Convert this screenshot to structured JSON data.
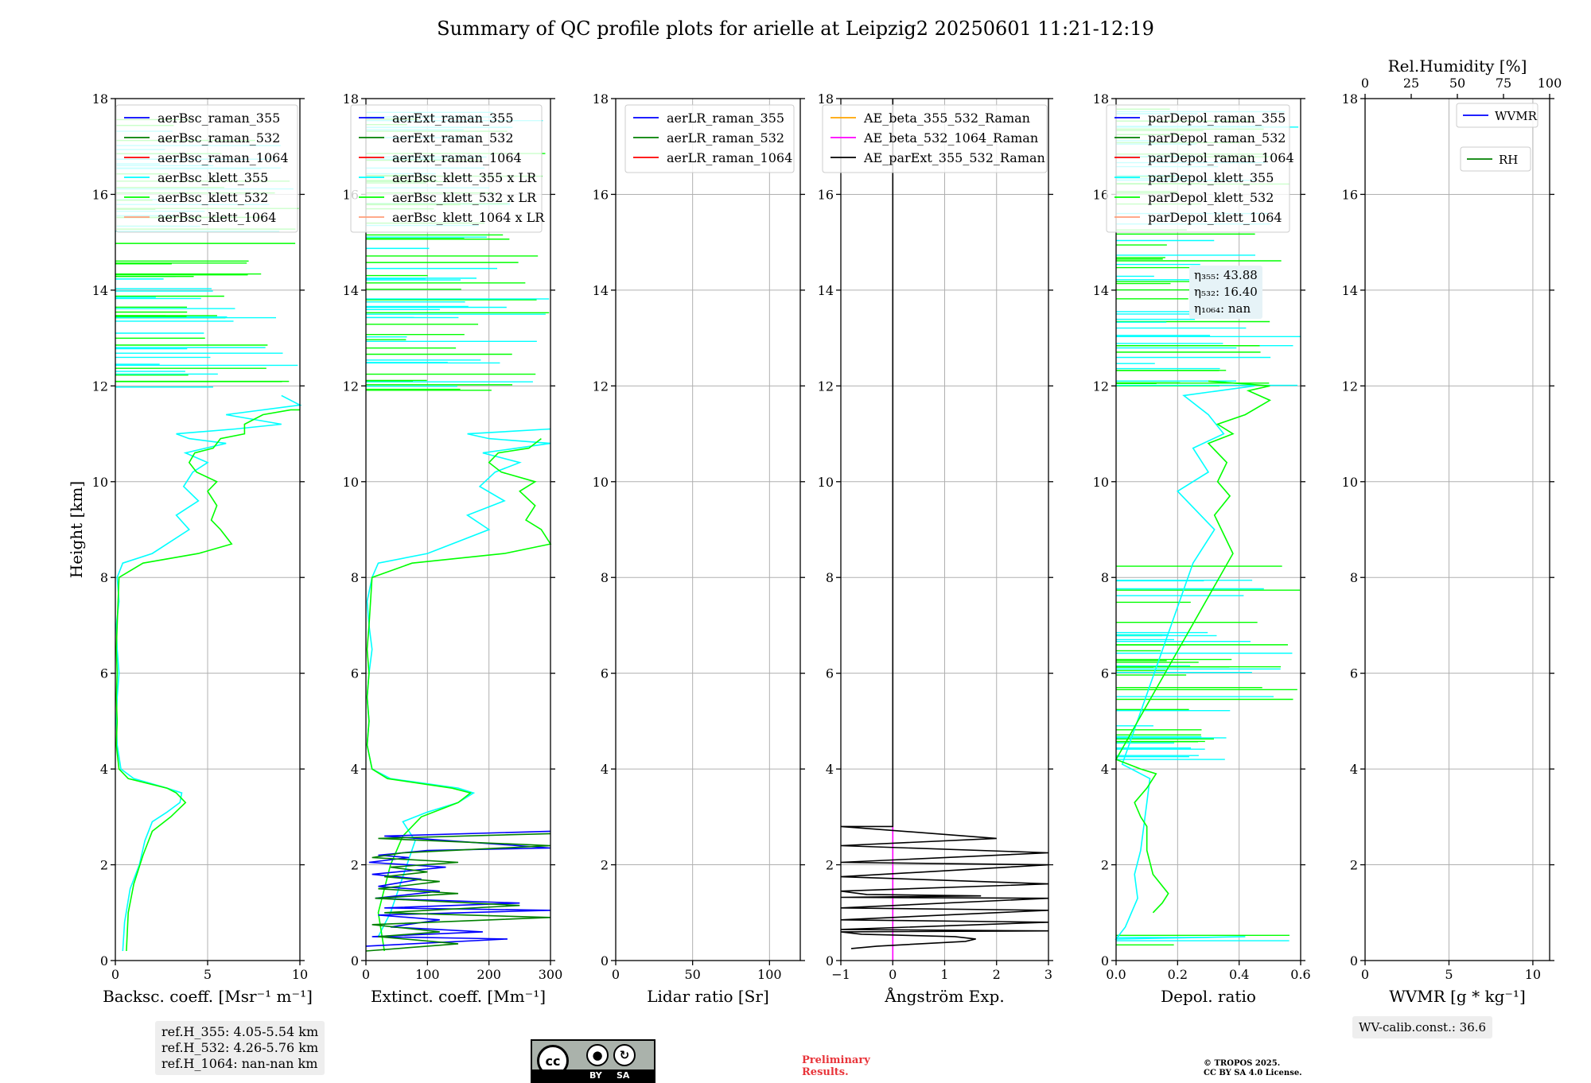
{
  "title": "Summary of QC profile plots for arielle at Leipzig2 20250601 11:21-12:19",
  "colors": {
    "raman_355": "#0000ff",
    "raman_532": "#008000",
    "raman_1064": "#ff0000",
    "klett_355": "#00ffff",
    "klett_532": "#00ff00",
    "klett_1064": "#ff9e7a",
    "ae_beta_355_532": "#ffa500",
    "ae_beta_532_1064": "#ff00ff",
    "ae_parext": "#000000",
    "wvmr": "#0000ff",
    "rh": "#008000"
  },
  "chart_data": [
    {
      "type": "line",
      "ylabel": "Height [km]",
      "xlabel": "Backsc. coeff. [Msr⁻¹ m⁻¹]",
      "xlim": [
        0,
        10
      ],
      "ylim": [
        0,
        18
      ],
      "xticks": [
        "0",
        "5",
        "10"
      ],
      "yticks": [
        "0",
        "2",
        "4",
        "6",
        "8",
        "10",
        "12",
        "14",
        "16",
        "18"
      ],
      "grid": true,
      "legend_position": "top-right",
      "legend": [
        "aerBsc_raman_355",
        "aerBsc_raman_532",
        "aerBsc_raman_1064",
        "aerBsc_klett_355",
        "aerBsc_klett_532",
        "aerBsc_klett_1064"
      ],
      "series": [
        {
          "name": "aerBsc_klett_355",
          "color": "#00ffff",
          "x": [
            0.4,
            0.5,
            0.8,
            1.3,
            1.6,
            2.0,
            2.8,
            3.5,
            3.6,
            2.8,
            1.0,
            0.3,
            0.1,
            0.05,
            0.1,
            0.2,
            0.1,
            0.05,
            0.2,
            0.1,
            0.4,
            2.0,
            4.0,
            3.3,
            4.5,
            3.7,
            4.2,
            5.0,
            3.8,
            6.0,
            4.0,
            3.3,
            6.5,
            9.0,
            6.0,
            10.0,
            9.0
          ],
          "y": [
            0.2,
            0.8,
            1.5,
            2.0,
            2.5,
            2.9,
            3.1,
            3.3,
            3.5,
            3.6,
            3.8,
            4.0,
            4.5,
            5.0,
            5.5,
            6.0,
            6.5,
            7.0,
            7.5,
            8.0,
            8.3,
            8.5,
            9.0,
            9.3,
            9.6,
            9.9,
            10.2,
            10.4,
            10.6,
            10.8,
            10.9,
            11.0,
            11.1,
            11.2,
            11.4,
            11.6,
            11.8
          ]
        },
        {
          "name": "aerBsc_klett_532",
          "color": "#00ff00",
          "x": [
            0.6,
            0.7,
            1.0,
            1.5,
            2.0,
            3.0,
            3.8,
            3.3,
            2.8,
            0.7,
            0.2,
            0.05,
            0.1,
            0.05,
            0.1,
            0.05,
            0.1,
            0.2,
            1.5,
            4.5,
            6.3,
            5.7,
            5.2,
            5.5,
            5.0,
            5.5,
            4.4,
            4.0,
            4.3,
            5.3,
            5.7,
            7.0,
            7.0,
            8.0,
            9.5,
            10.0
          ],
          "y": [
            0.2,
            1.0,
            1.6,
            2.2,
            2.7,
            3.0,
            3.3,
            3.5,
            3.6,
            3.8,
            4.0,
            4.5,
            5.0,
            5.5,
            6.0,
            6.5,
            7.0,
            8.0,
            8.3,
            8.5,
            8.7,
            9.0,
            9.2,
            9.5,
            9.8,
            10.0,
            10.2,
            10.4,
            10.6,
            10.7,
            10.9,
            11.0,
            11.2,
            11.4,
            11.5,
            11.5
          ]
        }
      ],
      "hlines_max_x": 10,
      "info": [
        "ref.H_355: 4.05-5.54 km",
        "ref.H_532: 4.26-5.76 km",
        "ref.H_1064: nan-nan km"
      ]
    },
    {
      "type": "line",
      "xlabel": "Extinct. coeff. [Mm⁻¹]",
      "xlim": [
        0,
        300
      ],
      "ylim": [
        0,
        18
      ],
      "xticks": [
        "0",
        "100",
        "200",
        "300"
      ],
      "yticks": [
        "0",
        "2",
        "4",
        "6",
        "8",
        "10",
        "12",
        "14",
        "16",
        "18"
      ],
      "grid": true,
      "legend_position": "top-right",
      "legend": [
        "aerExt_raman_355",
        "aerExt_raman_532",
        "aerExt_raman_1064",
        "aerBsc_klett_355 x LR",
        "aerBsc_klett_532 x LR",
        "aerBsc_klett_1064 x LR"
      ],
      "series": [
        {
          "name": "aerBsc_klett_355 x LR",
          "color": "#00ffff",
          "x": [
            20,
            40,
            80,
            70,
            60,
            100,
            150,
            175,
            150,
            40,
            10,
            2,
            5,
            2,
            5,
            10,
            5,
            2,
            10,
            20,
            100,
            200,
            165,
            225,
            185,
            210,
            250,
            190,
            300,
            200,
            165,
            300
          ],
          "y": [
            0.5,
            1.0,
            2.5,
            2.7,
            2.9,
            3.1,
            3.3,
            3.5,
            3.6,
            3.8,
            4.0,
            4.5,
            5.0,
            5.5,
            6.0,
            6.5,
            7.0,
            7.5,
            8.0,
            8.3,
            8.5,
            9.0,
            9.3,
            9.6,
            9.9,
            10.2,
            10.4,
            10.6,
            10.8,
            10.9,
            11.0,
            11.1
          ]
        },
        {
          "name": "aerBsc_klett_532 x LR",
          "color": "#00ff00",
          "x": [
            30,
            20,
            40,
            60,
            90,
            150,
            170,
            140,
            35,
            10,
            2,
            5,
            2,
            5,
            2,
            5,
            10,
            75,
            225,
            300,
            285,
            260,
            275,
            250,
            275,
            220,
            200,
            215,
            265,
            285
          ],
          "y": [
            0.2,
            1.0,
            2.0,
            2.6,
            3.0,
            3.3,
            3.5,
            3.6,
            3.8,
            4.0,
            4.5,
            5.0,
            5.5,
            6.0,
            6.5,
            7.0,
            8.0,
            8.3,
            8.5,
            8.7,
            9.0,
            9.2,
            9.5,
            9.8,
            10.0,
            10.2,
            10.4,
            10.6,
            10.7,
            10.9
          ]
        },
        {
          "name": "aerExt_raman_355",
          "color": "#0000ff",
          "x": [
            0,
            230,
            10,
            190,
            40,
            120,
            20,
            300,
            30,
            250,
            15,
            120,
            20,
            90,
            10,
            130,
            5,
            70,
            20,
            100,
            300,
            30,
            300
          ],
          "y": [
            0.3,
            0.45,
            0.5,
            0.6,
            0.7,
            0.85,
            0.95,
            1.05,
            1.1,
            1.2,
            1.3,
            1.45,
            1.55,
            1.7,
            1.8,
            1.95,
            2.05,
            2.15,
            2.2,
            2.3,
            2.35,
            2.6,
            2.7
          ]
        },
        {
          "name": "aerExt_raman_532",
          "color": "#008000",
          "x": [
            0,
            150,
            20,
            120,
            10,
            300,
            30,
            250,
            15,
            150,
            20,
            120,
            30,
            100,
            40,
            150,
            10,
            60,
            300,
            20,
            300
          ],
          "y": [
            0.2,
            0.35,
            0.5,
            0.6,
            0.75,
            0.9,
            1.0,
            1.15,
            1.3,
            1.4,
            1.5,
            1.65,
            1.75,
            1.85,
            1.95,
            2.05,
            2.15,
            2.25,
            2.4,
            2.55,
            2.65
          ]
        }
      ],
      "hlines_max_x": 300
    },
    {
      "type": "line",
      "xlabel": "Lidar ratio [Sr]",
      "xlim": [
        0,
        120
      ],
      "ylim": [
        0,
        18
      ],
      "xticks": [
        "0",
        "50",
        "100"
      ],
      "yticks": [
        "0",
        "2",
        "4",
        "6",
        "8",
        "10",
        "12",
        "14",
        "16",
        "18"
      ],
      "grid": true,
      "legend_position": "top-right",
      "legend": [
        "aerLR_raman_355",
        "aerLR_raman_532",
        "aerLR_raman_1064"
      ],
      "series": []
    },
    {
      "type": "line",
      "xlabel": "Ångström Exp.",
      "xlim": [
        -1,
        3
      ],
      "ylim": [
        0,
        18
      ],
      "xticks": [
        "−1",
        "0",
        "1",
        "2",
        "3"
      ],
      "yticks": [
        "0",
        "2",
        "4",
        "6",
        "8",
        "10",
        "12",
        "14",
        "16",
        "18"
      ],
      "grid": true,
      "legend_position": "top-right",
      "legend": [
        "AE_beta_355_532_Raman",
        "AE_beta_532_1064_Raman",
        "AE_parExt_355_532_Raman"
      ],
      "series": [
        {
          "name": "AE_beta_532_1064_Raman",
          "color": "#ff00ff",
          "x": [
            0,
            0
          ],
          "y": [
            0,
            2.8
          ]
        },
        {
          "name": "AE_parExt_355_532_Raman",
          "color": "#000000",
          "x": [
            -0.8,
            -0.3,
            1.4,
            1.6,
            1.2,
            -0.6,
            -1,
            3,
            -1,
            3,
            -1,
            3,
            -1,
            3,
            -1,
            1.7,
            -0.5,
            -1,
            3,
            -1,
            3,
            -1,
            3,
            -1,
            2.0,
            -1,
            0,
            0
          ],
          "y": [
            0.25,
            0.3,
            0.4,
            0.45,
            0.5,
            0.55,
            0.6,
            0.62,
            0.65,
            0.8,
            0.85,
            1.05,
            1.1,
            1.3,
            1.32,
            1.35,
            1.38,
            1.45,
            1.6,
            1.75,
            2.0,
            2.05,
            2.25,
            2.4,
            2.55,
            2.8,
            2.8,
            18
          ]
        }
      ]
    },
    {
      "type": "line",
      "xlabel": "Depol. ratio",
      "xlim": [
        0,
        0.6
      ],
      "ylim": [
        0,
        18
      ],
      "xticks": [
        "0.0",
        "0.2",
        "0.4",
        "0.6"
      ],
      "yticks": [
        "0",
        "2",
        "4",
        "6",
        "8",
        "10",
        "12",
        "14",
        "16",
        "18"
      ],
      "grid": true,
      "legend_position": "top-right",
      "legend": [
        "parDepol_raman_355",
        "parDepol_raman_532",
        "parDepol_raman_1064",
        "parDepol_klett_355",
        "parDepol_klett_532",
        "parDepol_klett_1064"
      ],
      "series": [
        {
          "name": "parDepol_klett_355",
          "color": "#00ffff",
          "x": [
            0.42,
            0.0,
            0.03,
            0.05,
            0.07,
            0.06,
            0.08,
            0.09,
            0.1,
            0.11,
            0.05,
            0.02,
            0.25,
            0.32,
            0.2,
            0.3,
            0.25,
            0.35,
            0.3,
            0.22,
            0.45
          ],
          "y": [
            0.5,
            0.45,
            0.7,
            1.0,
            1.3,
            1.8,
            2.3,
            2.8,
            3.3,
            3.8,
            4.0,
            4.1,
            8.3,
            9.0,
            9.8,
            10.2,
            10.7,
            11.0,
            11.4,
            11.8,
            12.0
          ]
        },
        {
          "name": "parDepol_klett_532",
          "color": "#00ff00",
          "x": [
            0.12,
            0.15,
            0.17,
            0.12,
            0.1,
            0.1,
            0.08,
            0.06,
            0.1,
            0.13,
            0.08,
            0.04,
            0.0,
            0.38,
            0.35,
            0.32,
            0.37,
            0.33,
            0.36,
            0.3,
            0.38,
            0.33,
            0.42,
            0.5,
            0.43,
            0.5,
            0.3
          ],
          "y": [
            1.0,
            1.2,
            1.4,
            1.8,
            2.3,
            2.8,
            3.0,
            3.3,
            3.6,
            3.9,
            4.0,
            4.1,
            4.2,
            8.5,
            8.9,
            9.3,
            9.7,
            10.0,
            10.4,
            10.8,
            11.0,
            11.2,
            11.4,
            11.7,
            11.9,
            12.0,
            12.1
          ]
        }
      ],
      "hlines_max_x": 0.6,
      "info": [
        "η₃₅₅: 43.88",
        "η₅₃₂: 16.40",
        "η₁₀₆₄: nan"
      ]
    },
    {
      "type": "line",
      "xlabel": "WVMR [g * kg⁻¹]",
      "xlim": [
        0,
        11
      ],
      "ylim": [
        0,
        18
      ],
      "xticks": [
        "0",
        "5",
        "10"
      ],
      "yticks": [
        "0",
        "2",
        "4",
        "6",
        "8",
        "10",
        "12",
        "14",
        "16",
        "18"
      ],
      "x2label": "Rel.Humidity [%]",
      "x2lim": [
        0,
        100
      ],
      "x2ticks": [
        "0",
        "25",
        "50",
        "75",
        "100"
      ],
      "grid": true,
      "legend_position": "top-right",
      "legend": [
        "WVMR",
        "RH"
      ],
      "series": [],
      "info": [
        "WV-calib.const.: 36.6"
      ]
    }
  ],
  "footer": {
    "preliminary": [
      "Preliminary",
      "Results."
    ],
    "copyright": [
      "© TROPOS 2025.",
      "CC BY SA 4.0 License."
    ],
    "license_badge": {
      "by": "BY",
      "sa": "SA"
    }
  }
}
